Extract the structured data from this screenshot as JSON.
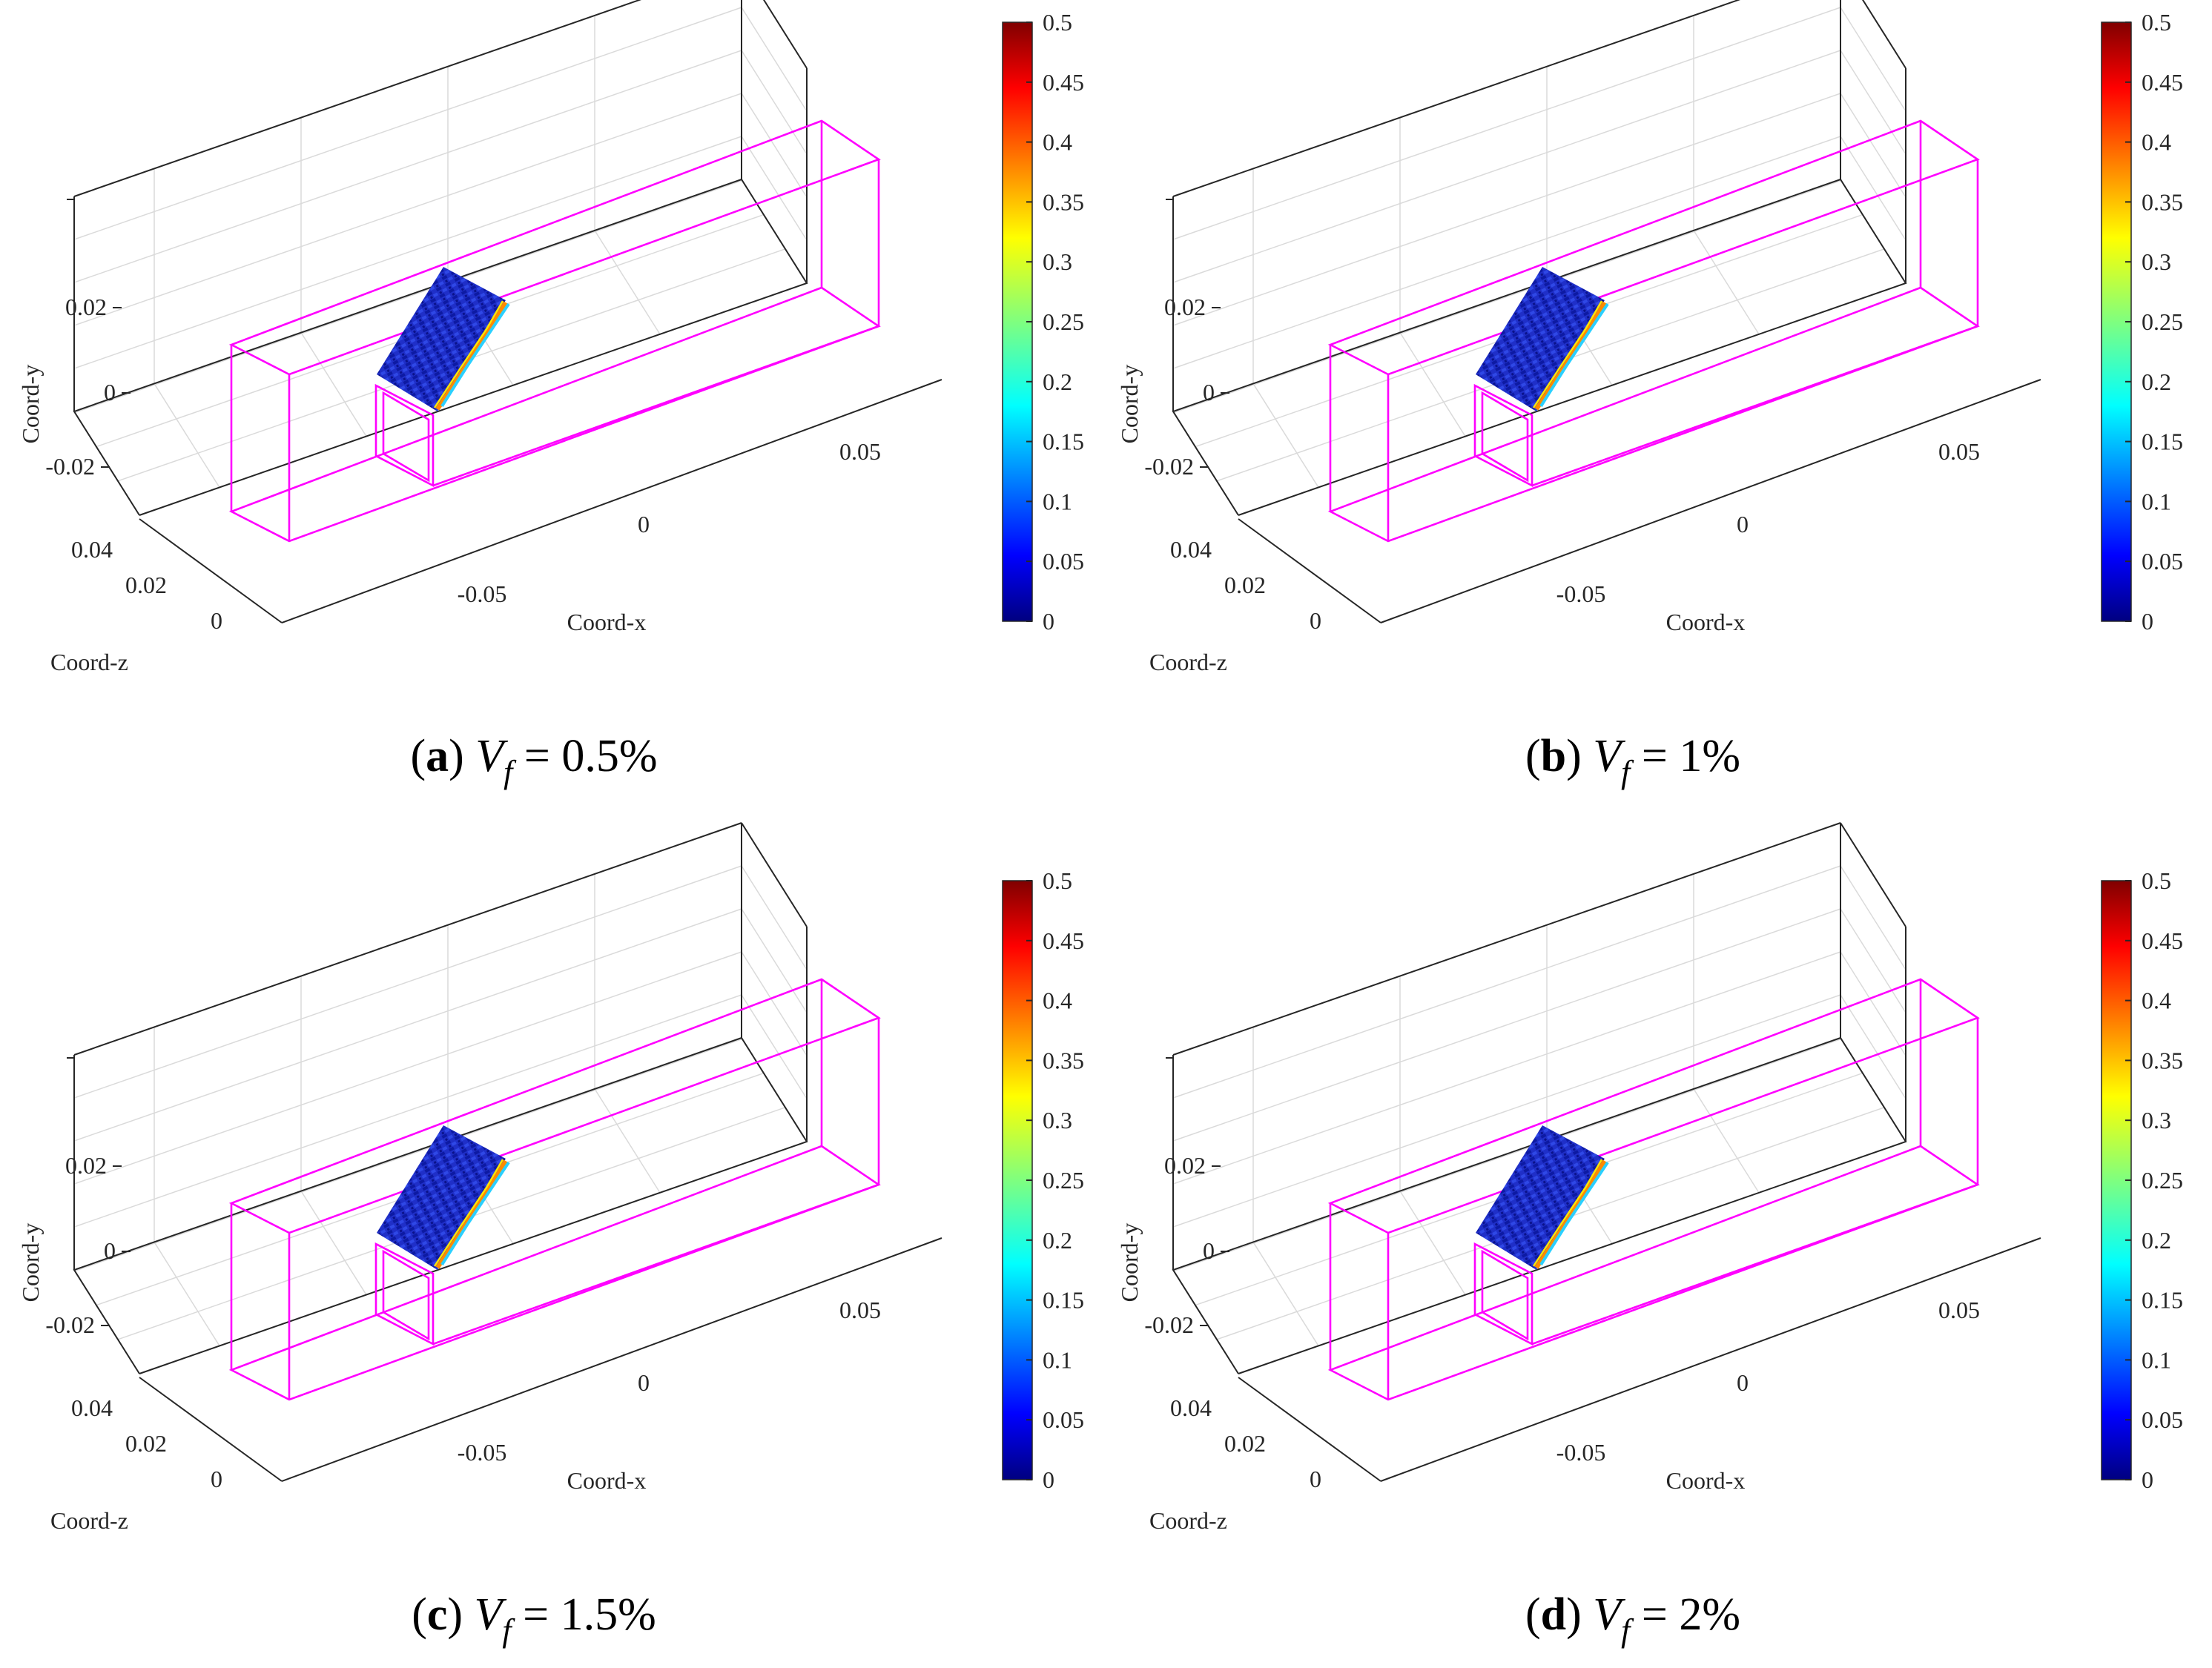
{
  "colors": {
    "box": "#ff00ff",
    "frame": "#262626",
    "grid": "#dadada",
    "colormap": "jet"
  },
  "chart_data": [
    {
      "type": "scatter3d",
      "panel_label": "(a)",
      "caption_value": "0.5%",
      "xlabel": "Coord-x",
      "ylabel": "Coord-y",
      "zlabel": "Coord-z",
      "x_ticks": [
        "-0.05",
        "0",
        "0.05"
      ],
      "y_ticks": [
        "0.02",
        "0",
        "-0.02"
      ],
      "z_ticks": [
        "0.04",
        "0.02",
        "0"
      ],
      "colorbar_ticks": [
        "0.5",
        "0.45",
        "0.4",
        "0.35",
        "0.3",
        "0.25",
        "0.2",
        "0.15",
        "0.1",
        "0.05",
        "0"
      ],
      "colorbar_range": [
        0,
        0.5
      ],
      "grid": true
    },
    {
      "type": "scatter3d",
      "panel_label": "(b)",
      "caption_value": "1%",
      "xlabel": "Coord-x",
      "ylabel": "Coord-y",
      "zlabel": "Coord-z",
      "x_ticks": [
        "-0.05",
        "0",
        "0.05"
      ],
      "y_ticks": [
        "0.02",
        "0",
        "-0.02"
      ],
      "z_ticks": [
        "0.04",
        "0.02",
        "0"
      ],
      "colorbar_ticks": [
        "0.5",
        "0.45",
        "0.4",
        "0.35",
        "0.3",
        "0.25",
        "0.2",
        "0.15",
        "0.1",
        "0.05",
        "0"
      ],
      "colorbar_range": [
        0,
        0.5
      ],
      "grid": true
    },
    {
      "type": "scatter3d",
      "panel_label": "(c)",
      "caption_value": "1.5%",
      "xlabel": "Coord-x",
      "ylabel": "Coord-y",
      "zlabel": "Coord-z",
      "x_ticks": [
        "-0.05",
        "0",
        "0.05"
      ],
      "y_ticks": [
        "0.02",
        "0",
        "-0.02"
      ],
      "z_ticks": [
        "0.04",
        "0.02",
        "0"
      ],
      "colorbar_ticks": [
        "0.5",
        "0.45",
        "0.4",
        "0.35",
        "0.3",
        "0.25",
        "0.2",
        "0.15",
        "0.1",
        "0.05",
        "0"
      ],
      "colorbar_range": [
        0,
        0.5
      ],
      "grid": true
    },
    {
      "type": "scatter3d",
      "panel_label": "(d)",
      "caption_value": "2%",
      "xlabel": "Coord-x",
      "ylabel": "Coord-y",
      "zlabel": "Coord-z",
      "x_ticks": [
        "-0.05",
        "0",
        "0.05"
      ],
      "y_ticks": [
        "0.02",
        "0",
        "-0.02"
      ],
      "z_ticks": [
        "0.04",
        "0.02",
        "0"
      ],
      "colorbar_ticks": [
        "0.5",
        "0.45",
        "0.4",
        "0.35",
        "0.3",
        "0.25",
        "0.2",
        "0.15",
        "0.1",
        "0.05",
        "0"
      ],
      "colorbar_range": [
        0,
        0.5
      ],
      "grid": true
    }
  ]
}
